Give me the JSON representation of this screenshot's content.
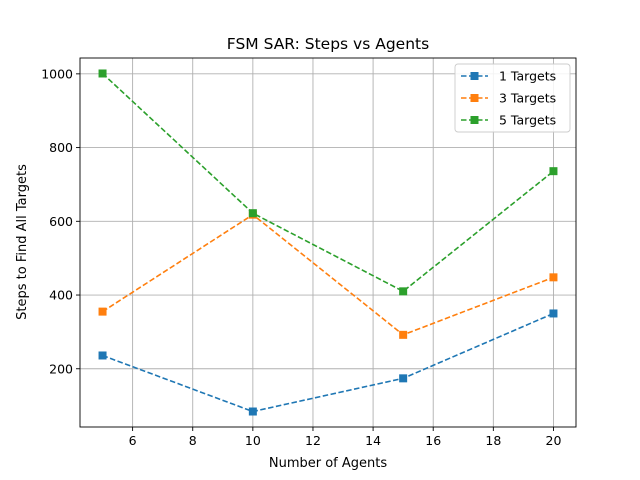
{
  "chart_data": {
    "type": "line",
    "title": "FSM SAR: Steps vs Agents",
    "xlabel": "Number of Agents",
    "ylabel": "Steps to Find All Targets",
    "xlim": [
      4.25,
      20.75
    ],
    "ylim": [
      42,
      1043
    ],
    "xticks": [
      6,
      8,
      10,
      12,
      14,
      16,
      18,
      20
    ],
    "yticks": [
      200,
      400,
      600,
      800,
      1000
    ],
    "grid": true,
    "legend_position": "top-right",
    "marker": "square",
    "line_style": "dashed",
    "x": [
      5,
      10,
      15,
      20
    ],
    "series": [
      {
        "name": "1 Targets",
        "color": "#1f77b4",
        "values": [
          236,
          84,
          174,
          350
        ]
      },
      {
        "name": "3 Targets",
        "color": "#ff7f0e",
        "values": [
          355,
          618,
          292,
          448
        ]
      },
      {
        "name": "5 Targets",
        "color": "#2ca02c",
        "values": [
          1001,
          622,
          410,
          736
        ]
      }
    ]
  }
}
